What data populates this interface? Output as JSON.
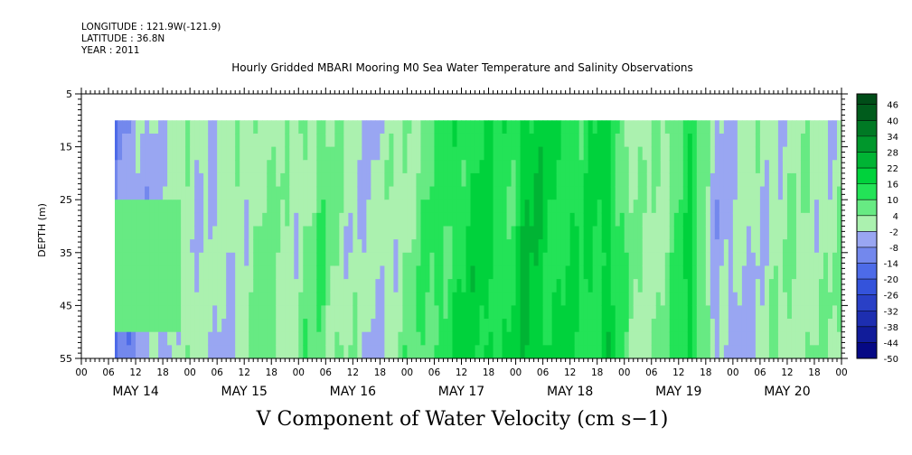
{
  "header": {
    "longitude": "LONGITUDE : 121.9W(-121.9)",
    "latitude": "LATITUDE : 36.8N",
    "year": "YEAR : 2011",
    "title": "Hourly Gridded MBARI Mooring M0 Sea Water Temperature and Salinity Observations"
  },
  "bottom_title": "V Component of Water Velocity (cm s−1)",
  "chart_data": {
    "type": "heatmap",
    "title": "Hourly Gridded MBARI Mooring M0 Sea Water Temperature and Salinity Observations",
    "variable": "V Component of Water Velocity (cm s−1)",
    "ylabel": "DEPTH (m)",
    "xlabel": "",
    "x_range_hours": [
      0,
      168
    ],
    "data_start_hour": 7,
    "y_range": [
      5,
      55
    ],
    "y_inverted": true,
    "data_depth_range": [
      10,
      55
    ],
    "y_ticks": [
      5,
      15,
      25,
      35,
      45,
      55
    ],
    "x_hour_ticks": [
      "00",
      "06",
      "12",
      "18",
      "00",
      "06",
      "12",
      "18",
      "00",
      "06",
      "12",
      "18",
      "00",
      "06",
      "12",
      "18",
      "00",
      "06",
      "12",
      "18",
      "00",
      "06",
      "12",
      "18",
      "00",
      "06",
      "12",
      "18",
      "00"
    ],
    "day_labels": [
      "MAY 14",
      "MAY 15",
      "MAY 16",
      "MAY 17",
      "MAY 18",
      "MAY 19",
      "MAY 20"
    ],
    "colorbar": {
      "levels": [
        -50,
        -44,
        -38,
        -32,
        -26,
        -20,
        -14,
        -8,
        -2,
        4,
        10,
        16,
        22,
        28,
        34,
        40,
        46
      ],
      "range": [
        -50,
        50
      ],
      "colors": {
        "neg_dark": "#00007a",
        "neg_mid": "#3a5ce6",
        "neg_light": "#b8bef6",
        "pos_light": "#b6f2b6",
        "pos_mid": "#00e040",
        "pos_dark": "#004d18"
      }
    },
    "column_means_cm_s": [
      {
        "day_hour": 7,
        "v": -12
      },
      {
        "day_hour": 14,
        "v": -4
      },
      {
        "day_hour": 22,
        "v": 2
      },
      {
        "day_hour": 28,
        "v": -2
      },
      {
        "day_hour": 34,
        "v": 0
      },
      {
        "day_hour": 40,
        "v": 6
      },
      {
        "day_hour": 46,
        "v": 1
      },
      {
        "day_hour": 52,
        "v": 8
      },
      {
        "day_hour": 58,
        "v": 2
      },
      {
        "day_hour": 64,
        "v": -3
      },
      {
        "day_hour": 70,
        "v": 3
      },
      {
        "day_hour": 76,
        "v": 9
      },
      {
        "day_hour": 82,
        "v": 14
      },
      {
        "day_hour": 88,
        "v": 18
      },
      {
        "day_hour": 94,
        "v": 12
      },
      {
        "day_hour": 98,
        "v": 22
      },
      {
        "day_hour": 104,
        "v": 16
      },
      {
        "day_hour": 110,
        "v": 14
      },
      {
        "day_hour": 116,
        "v": 18
      },
      {
        "day_hour": 122,
        "v": 2
      },
      {
        "day_hour": 128,
        "v": 4
      },
      {
        "day_hour": 134,
        "v": 16
      },
      {
        "day_hour": 140,
        "v": -4
      },
      {
        "day_hour": 146,
        "v": -2
      },
      {
        "day_hour": 152,
        "v": 1
      },
      {
        "day_hour": 158,
        "v": 3
      },
      {
        "day_hour": 164,
        "v": 2
      }
    ]
  }
}
